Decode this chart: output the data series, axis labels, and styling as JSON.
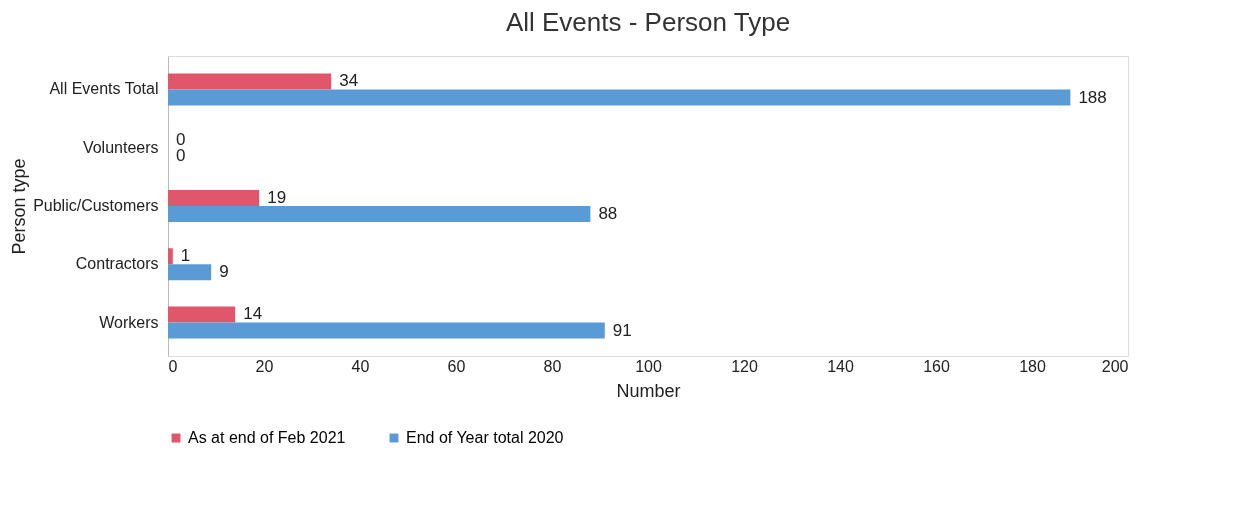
{
  "chart_data": {
    "type": "bar",
    "orientation": "horizontal",
    "title": "All Events - Person Type",
    "xlabel": "Number",
    "ylabel": "Person type",
    "categories": [
      "All Events Total",
      "Volunteers",
      "Public/Customers",
      "Contractors",
      "Workers"
    ],
    "series": [
      {
        "name": "As at end of Feb 2021",
        "color": "#e0566b",
        "values": [
          34,
          0,
          19,
          1,
          14
        ]
      },
      {
        "name": "End of Year total 2020",
        "color": "#5b9bd5",
        "values": [
          188,
          0,
          88,
          9,
          91
        ]
      }
    ],
    "xlim": [
      0,
      200
    ],
    "xticks": [
      0,
      20,
      40,
      60,
      80,
      100,
      120,
      140,
      160,
      180,
      200
    ],
    "data_labels": true,
    "grid": false,
    "legend": "bottom"
  }
}
